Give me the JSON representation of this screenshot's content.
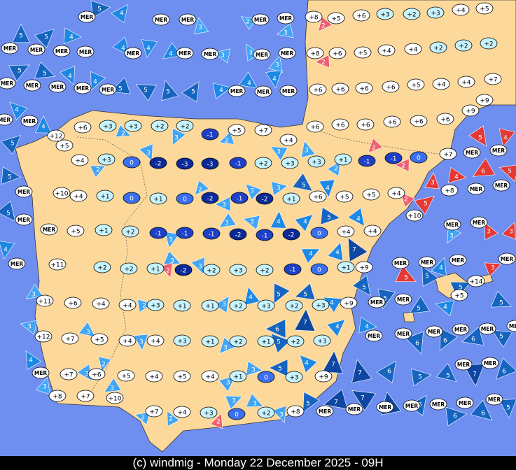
{
  "footer": "(c) windmig - Monday 22 December 2025 - 09H",
  "temperatures": [
    "MER",
    "MER",
    "MER",
    "MER",
    "MER",
    "+8",
    "+5",
    "+6",
    "+3",
    "+2",
    "+3",
    "+4",
    "+5",
    "MER",
    "MER",
    "MER",
    "MER",
    "MER",
    "MER",
    "MER",
    "MER",
    "MER",
    "+8",
    "+6",
    "+5",
    "+4",
    "+4",
    "+2",
    "+2",
    "+2",
    "MER",
    "MER",
    "MER",
    "MER",
    "MER",
    "MER",
    "MER",
    "MER",
    "+6",
    "+6",
    "+6",
    "+6",
    "+5",
    "+4",
    "+4",
    "+7",
    "MER",
    "MER",
    "+12",
    "+5",
    "+6",
    "+3",
    "+3",
    "+2",
    "+2",
    "-1",
    "+5",
    "+7",
    "+4",
    "+6",
    "+6",
    "+6",
    "+6",
    "+6",
    "+6",
    "+9",
    "+9",
    "+4",
    "+3",
    "0",
    "-2",
    "-3",
    "-3",
    "-1",
    "+2",
    "+3",
    "+3",
    "+1",
    "-1",
    "-1",
    "0",
    "+7",
    "MER",
    "MER",
    "MER",
    "+10",
    "+4",
    "+1",
    "0",
    "+1",
    "0",
    "-2",
    "-1",
    "-2",
    "+1",
    "+6",
    "+5",
    "+5",
    "+4",
    "+8",
    "MER",
    "MER",
    "+5",
    "+1",
    "+2",
    "-1",
    "-1",
    "-1",
    "-2",
    "-1",
    "-2",
    "0",
    "+4",
    "+4",
    "+10",
    "MER",
    "MER",
    "MER",
    "MER",
    "MER",
    "+11",
    "+2",
    "+2",
    "+1",
    "-2",
    "+2",
    "+3",
    "+2",
    "-1",
    "0",
    "+1",
    "+9",
    "MER",
    "MER",
    "MER",
    "+14",
    "MER",
    "+11",
    "+6",
    "+4",
    "+4",
    "+3",
    "+1",
    "+1",
    "+2",
    "+3",
    "+2",
    "+3",
    "+9",
    "MER",
    "MER",
    "+5",
    "+12",
    "+7",
    "+5",
    "+4",
    "+4",
    "+3",
    "+1",
    "+2",
    "+1",
    "+2",
    "+3",
    "MER",
    "MER",
    "MER",
    "MER",
    "MER",
    "MER",
    "MER",
    "+7",
    "+6",
    "+5",
    "+4",
    "+5",
    "+4",
    "+1",
    "0",
    "+3",
    "+9",
    "MER",
    "MER",
    "+8",
    "+7",
    "+10",
    "+7",
    "+4",
    "+3",
    "0",
    "+2",
    "+8",
    "MER",
    "MER",
    "MER",
    "MER",
    "MER",
    "MER",
    "MER"
  ],
  "winds": [
    {
      "speed": "5",
      "color": "#1565c0"
    },
    {
      "speed": "5",
      "color": "#1565c0"
    },
    {
      "speed": "4",
      "color": "#1e88e5"
    },
    {
      "speed": "4",
      "color": "#1e88e5"
    },
    {
      "speed": "4",
      "color": "#1e88e5"
    },
    {
      "speed": "4",
      "color": "#1e88e5"
    },
    {
      "speed": "3",
      "color": "#42a5f5"
    },
    {
      "speed": "3",
      "color": "#42a5f5"
    },
    {
      "speed": "3",
      "color": "#42a5f5"
    },
    {
      "speed": "5",
      "color": "#1565c0"
    },
    {
      "speed": "5",
      "color": "#1565c0"
    },
    {
      "speed": "4",
      "color": "#1e88e5"
    },
    {
      "speed": "4",
      "color": "#1e88e5"
    },
    {
      "speed": "5",
      "color": "#1565c0"
    },
    {
      "speed": "5",
      "color": "#1565c0"
    },
    {
      "speed": "5",
      "color": "#1565c0"
    },
    {
      "speed": "5",
      "color": "#1565c0"
    },
    {
      "speed": "4",
      "color": "#1e88e5"
    },
    {
      "speed": "4",
      "color": "#1e88e5"
    },
    {
      "speed": "4",
      "color": "#1e88e5"
    },
    {
      "speed": "2",
      "color": "#f06070"
    },
    {
      "speed": "2",
      "color": "#f06070"
    },
    {
      "speed": "4",
      "color": "#1e88e5"
    },
    {
      "speed": "4",
      "color": "#1e88e5"
    },
    {
      "speed": "5",
      "color": "#1565c0"
    },
    {
      "speed": "5",
      "color": "#1565c0"
    },
    {
      "speed": "5",
      "color": "#1565c0"
    },
    {
      "speed": "4",
      "color": "#1e88e5"
    },
    {
      "speed": "3",
      "color": "#42a5f5"
    },
    {
      "speed": "3",
      "color": "#42a5f5"
    },
    {
      "speed": "4",
      "color": "#1e88e5"
    },
    {
      "speed": "3",
      "color": "#42a5f5"
    },
    {
      "speed": "2",
      "color": "#42a5f5"
    },
    {
      "speed": "2",
      "color": "#42a5f5"
    },
    {
      "speed": "3",
      "color": "#42a5f5"
    },
    {
      "speed": "3",
      "color": "#42a5f5"
    },
    {
      "speed": "2",
      "color": "#42a5f5"
    },
    {
      "speed": "3",
      "color": "#42a5f5"
    },
    {
      "speed": "3",
      "color": "#42a5f5"
    },
    {
      "speed": "2",
      "color": "#42a5f5"
    },
    {
      "speed": "3",
      "color": "#42a5f5"
    },
    {
      "speed": "5",
      "color": "#1565c0"
    },
    {
      "speed": "4",
      "color": "#1e88e5"
    },
    {
      "speed": "2",
      "color": "#42a5f5"
    },
    {
      "speed": "3",
      "color": "#42a5f5"
    },
    {
      "speed": "3",
      "color": "#42a5f5"
    },
    {
      "speed": "4",
      "color": "#1e88e5"
    },
    {
      "speed": "4",
      "color": "#1e88e5"
    },
    {
      "speed": "5",
      "color": "#1565c0"
    },
    {
      "speed": "4",
      "color": "#1e88e5"
    },
    {
      "speed": "3",
      "color": "#42a5f5"
    },
    {
      "speed": "3",
      "color": "#42a5f5"
    },
    {
      "speed": "3",
      "color": "#42a5f5"
    },
    {
      "speed": "7",
      "color": "#0d47a1"
    },
    {
      "speed": "4",
      "color": "#1e88e5"
    },
    {
      "speed": "4",
      "color": "#1e88e5"
    },
    {
      "speed": "3",
      "color": "#42a5f5"
    },
    {
      "speed": "3",
      "color": "#42a5f5"
    },
    {
      "speed": "5",
      "color": "#1565c0"
    },
    {
      "speed": "5",
      "color": "#1565c0"
    },
    {
      "speed": "4",
      "color": "#1e88e5"
    },
    {
      "speed": "4",
      "color": "#1e88e5"
    },
    {
      "speed": "3",
      "color": "#42a5f5"
    },
    {
      "speed": "2",
      "color": "#42a5f5"
    },
    {
      "speed": "3",
      "color": "#42a5f5"
    },
    {
      "speed": "3",
      "color": "#42a5f5"
    },
    {
      "speed": "3",
      "color": "#42a5f5"
    },
    {
      "speed": "6",
      "color": "#1565c0"
    },
    {
      "speed": "5",
      "color": "#1565c0"
    },
    {
      "speed": "7",
      "color": "#0d47a1"
    },
    {
      "speed": "4",
      "color": "#1e88e5"
    },
    {
      "speed": "4",
      "color": "#1e88e5"
    },
    {
      "speed": "5",
      "color": "#1565c0"
    },
    {
      "speed": "5",
      "color": "#1565c0"
    },
    {
      "speed": "5",
      "color": "#1565c0"
    },
    {
      "speed": "4",
      "color": "#1e88e5"
    },
    {
      "speed": "5",
      "color": "#1565c0"
    },
    {
      "speed": "4",
      "color": "#1e88e5"
    },
    {
      "speed": "5",
      "color": "#1565c0"
    },
    {
      "speed": "5",
      "color": "#1565c0"
    },
    {
      "speed": "6",
      "color": "#1565c0"
    },
    {
      "speed": "6",
      "color": "#1565c0"
    },
    {
      "speed": "6",
      "color": "#1565c0"
    },
    {
      "speed": "5",
      "color": "#1565c0"
    },
    {
      "speed": "7",
      "color": "#0d47a1"
    },
    {
      "speed": "6",
      "color": "#1565c0"
    },
    {
      "speed": "5",
      "color": "#1565c0"
    },
    {
      "speed": "5",
      "color": "#1565c0"
    },
    {
      "speed": "7",
      "color": "#0d47a1"
    },
    {
      "speed": "6",
      "color": "#1565c0"
    },
    {
      "speed": "5",
      "color": "#1565c0"
    },
    {
      "speed": "4",
      "color": "#1e88e5"
    },
    {
      "speed": "7",
      "color": "#0d47a1"
    },
    {
      "speed": "3",
      "color": "#42a5f5"
    },
    {
      "speed": "3",
      "color": "#42a5f5"
    },
    {
      "speed": "3",
      "color": "#42a5f5"
    },
    {
      "speed": "2",
      "color": "#42a5f5"
    },
    {
      "speed": "3",
      "color": "#42a5f5"
    },
    {
      "speed": "2",
      "color": "#42a5f5"
    },
    {
      "speed": "2",
      "color": "#42a5f5"
    },
    {
      "speed": "2",
      "color": "#f06070"
    },
    {
      "speed": "3",
      "color": "#42a5f5"
    },
    {
      "speed": "3",
      "color": "#42a5f5"
    },
    {
      "speed": "3",
      "color": "#42a5f5"
    },
    {
      "speed": "5",
      "color": "#1565c0"
    },
    {
      "speed": "7",
      "color": "#0d47a1"
    },
    {
      "speed": "7",
      "color": "#0d47a1"
    },
    {
      "speed": "7",
      "color": "#0d47a1"
    },
    {
      "speed": "5",
      "color": "#1565c0"
    },
    {
      "speed": "6",
      "color": "#1565c0"
    },
    {
      "speed": "6",
      "color": "#1565c0"
    },
    {
      "speed": "5",
      "color": "#1565c0"
    },
    {
      "speed": "2",
      "color": "#f06070"
    },
    {
      "speed": "2",
      "color": "#f06070"
    },
    {
      "speed": "2",
      "color": "#f06070"
    },
    {
      "speed": "3",
      "color": "#e53935"
    },
    {
      "speed": "5",
      "color": "#e53935"
    },
    {
      "speed": "4",
      "color": "#e53935"
    },
    {
      "speed": "5",
      "color": "#e53935"
    },
    {
      "speed": "4",
      "color": "#e53935"
    },
    {
      "speed": "6",
      "color": "#e53935"
    },
    {
      "speed": "5",
      "color": "#e53935"
    },
    {
      "speed": "3",
      "color": "#e53935"
    },
    {
      "speed": "3",
      "color": "#e53935"
    },
    {
      "speed": "3",
      "color": "#e53935"
    },
    {
      "speed": "5",
      "color": "#e53935"
    },
    {
      "speed": "2",
      "color": "#f06070"
    },
    {
      "speed": "3",
      "color": "#42a5f5"
    },
    {
      "speed": "3",
      "color": "#42a5f5"
    },
    {
      "speed": "2",
      "color": "#42a5f5"
    },
    {
      "speed": "3",
      "color": "#42a5f5"
    },
    {
      "speed": "4",
      "color": "#1e88e5"
    },
    {
      "speed": "5",
      "color": "#1565c0"
    }
  ]
}
